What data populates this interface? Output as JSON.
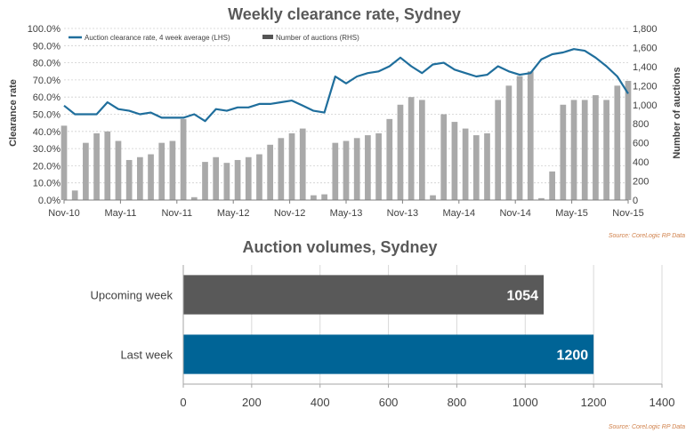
{
  "chart_data": [
    {
      "type": "bar+line",
      "title": "Weekly clearance rate, Sydney",
      "ylabel_left": "Clearance rate",
      "ylabel_right": "Number of auctions",
      "source": "Source: CoreLogic RP Data",
      "legend": {
        "placement": "top-left",
        "items": [
          {
            "name": "Auction clearance rate, 4 week average (LHS)",
            "color": "#1f6e9c",
            "kind": "line"
          },
          {
            "name": "Number of auctions (RHS)",
            "color": "#555555",
            "kind": "bar"
          }
        ]
      },
      "x_ticks": [
        "Nov-10",
        "May-11",
        "Nov-11",
        "May-12",
        "Nov-12",
        "May-13",
        "Nov-13",
        "May-14",
        "Nov-14",
        "May-15",
        "Nov-15"
      ],
      "y_left_ticks": [
        "0.0%",
        "10.0%",
        "20.0%",
        "30.0%",
        "40.0%",
        "50.0%",
        "60.0%",
        "70.0%",
        "80.0%",
        "90.0%",
        "100.0%"
      ],
      "y_right_ticks": [
        "0",
        "200",
        "400",
        "600",
        "800",
        "1,000",
        "1,200",
        "1,400",
        "1,600",
        "1,800"
      ],
      "y_left_range": [
        0,
        100
      ],
      "y_right_range": [
        0,
        1800
      ],
      "grid": "horizontal dashed",
      "colors": {
        "line": "#1f6e9c",
        "line_weekly": "#5ba3d0",
        "bars": "#a9a9a9"
      },
      "clearance_rate_4wk_avg_by_month": [
        55,
        50,
        50,
        50,
        57,
        53,
        52,
        50,
        51,
        48,
        48,
        48,
        50,
        46,
        53,
        52,
        54,
        54,
        56,
        56,
        57,
        58,
        55,
        52,
        51,
        72,
        68,
        72,
        74,
        75,
        78,
        83,
        78,
        74,
        79,
        80,
        76,
        74,
        72,
        73,
        78,
        75,
        73,
        74,
        82,
        85,
        86,
        88,
        87,
        83,
        78,
        72,
        62
      ],
      "auctions_by_month": [
        780,
        100,
        600,
        700,
        720,
        620,
        420,
        450,
        480,
        600,
        620,
        850,
        30,
        400,
        450,
        390,
        420,
        450,
        480,
        580,
        650,
        700,
        750,
        50,
        60,
        600,
        620,
        650,
        680,
        700,
        850,
        1000,
        1080,
        1050,
        50,
        900,
        820,
        750,
        680,
        700,
        1050,
        1200,
        1300,
        1350,
        20,
        300,
        1000,
        1050,
        1050,
        1100,
        1050,
        1200,
        1250
      ]
    },
    {
      "type": "bar",
      "orientation": "horizontal",
      "title": "Auction volumes, Sydney",
      "source": "Source: CoreLogic RP Data",
      "categories": [
        "Upcoming week",
        "Last week"
      ],
      "values": [
        1054,
        1200
      ],
      "value_labels": [
        "1054",
        "1200"
      ],
      "colors": [
        "#595959",
        "#006496"
      ],
      "xlim": [
        0,
        1400
      ],
      "x_ticks": [
        "0",
        "200",
        "400",
        "600",
        "800",
        "1000",
        "1200",
        "1400"
      ],
      "grid": "vertical"
    }
  ]
}
